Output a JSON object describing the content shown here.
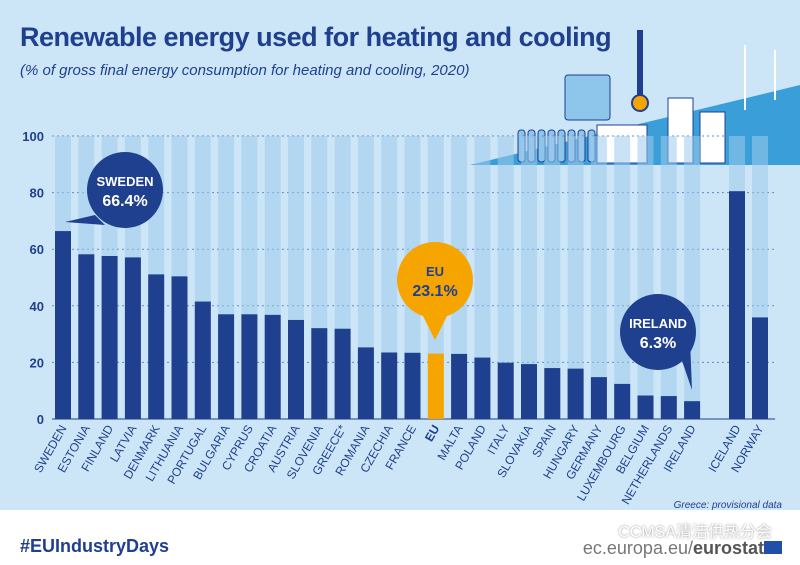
{
  "title": "Renewable energy used for heating and cooling",
  "subtitle": "(% of gross final energy consumption for heating and cooling, 2020)",
  "note": "Greece: provisional data",
  "hashtag": "#EUIndustryDays",
  "source_prefix": "ec.europa.eu/",
  "source_brand": "eurostat",
  "watermark": "CCMSA清洁供热分会",
  "colors": {
    "bar": "#1f3f8f",
    "eu": "#f5a400",
    "background": "#cde6f7",
    "column": "#9fcbec"
  },
  "chart_data": {
    "type": "bar",
    "ylim": [
      0,
      100
    ],
    "yticks": [
      "0",
      "20",
      "40",
      "60",
      "80",
      "100"
    ],
    "grid": true,
    "categories": [
      "SWEDEN",
      "ESTONIA",
      "FINLAND",
      "LATVIA",
      "DENMARK",
      "LITHUANIA",
      "PORTUGAL",
      "BULGARIA",
      "CYPRUS",
      "CROATIA",
      "AUSTRIA",
      "SLOVENIA",
      "GREECE*",
      "ROMANIA",
      "CZECHIA",
      "FRANCE",
      "EU",
      "MALTA",
      "POLAND",
      "ITALY",
      "SLOVAKIA",
      "SPAIN",
      "HUNGARY",
      "GERMANY",
      "LUXEMBOURG",
      "BELGIUM",
      "NETHERLANDS",
      "IRELAND",
      "ICELAND",
      "NORWAY"
    ],
    "values": [
      66.4,
      58.2,
      57.6,
      57.1,
      51.1,
      50.4,
      41.5,
      37.0,
      37.0,
      36.8,
      35.0,
      32.1,
      31.9,
      25.3,
      23.5,
      23.4,
      23.1,
      23.0,
      21.7,
      19.9,
      19.4,
      18.0,
      17.8,
      14.8,
      12.4,
      8.3,
      8.1,
      6.3,
      80.5,
      35.9
    ],
    "callouts": [
      {
        "name": "SWEDEN",
        "value": "66.4%"
      },
      {
        "name": "EU",
        "value": "23.1%"
      },
      {
        "name": "IRELAND",
        "value": "6.3%"
      }
    ]
  }
}
